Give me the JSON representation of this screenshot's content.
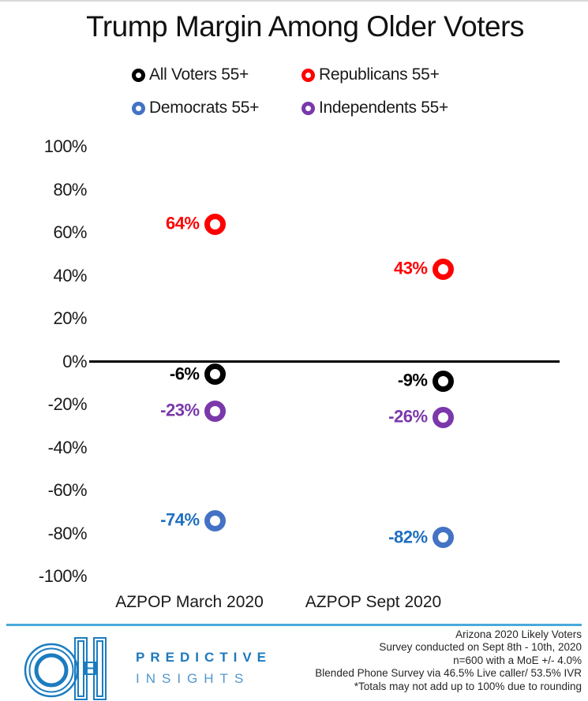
{
  "chart_data": {
    "type": "scatter",
    "title": "Trump Margin Among Older Voters",
    "categories": [
      "AZPOP March 2020",
      "AZPOP Sept 2020"
    ],
    "yticks": [
      "100%",
      "80%",
      "60%",
      "40%",
      "20%",
      "0%",
      "-20%",
      "-40%",
      "-60%",
      "-80%",
      "-100%"
    ],
    "ylim": [
      -100,
      100
    ],
    "grid": false,
    "legend_position": "top",
    "value_suffix": "%",
    "series": [
      {
        "name": "All Voters 55+",
        "color": "#000000",
        "values": [
          -6,
          -9
        ]
      },
      {
        "name": "Republicans 55+",
        "color": "#ff0000",
        "values": [
          64,
          43
        ]
      },
      {
        "name": "Democrats 55+",
        "color": "#4472c4",
        "label_color": "#1f6fc0",
        "values": [
          -74,
          -82
        ]
      },
      {
        "name": "Independents 55+",
        "color": "#7a38ab",
        "values": [
          -23,
          -26
        ]
      }
    ]
  },
  "footer": {
    "brand": {
      "logo": "OH",
      "line1": "PREDICTIVE",
      "line2": "INSIGHTS",
      "accent_color": "#1b7cc0"
    },
    "notes": [
      "Arizona 2020 Likely Voters",
      "Survey conducted on Sept 8th - 10th, 2020",
      "n=600 with a MoE +/- 4.0%",
      "Blended Phone Survey via 46.5% Live caller/ 53.5% IVR",
      "*Totals may not add up to 100% due to rounding"
    ]
  }
}
